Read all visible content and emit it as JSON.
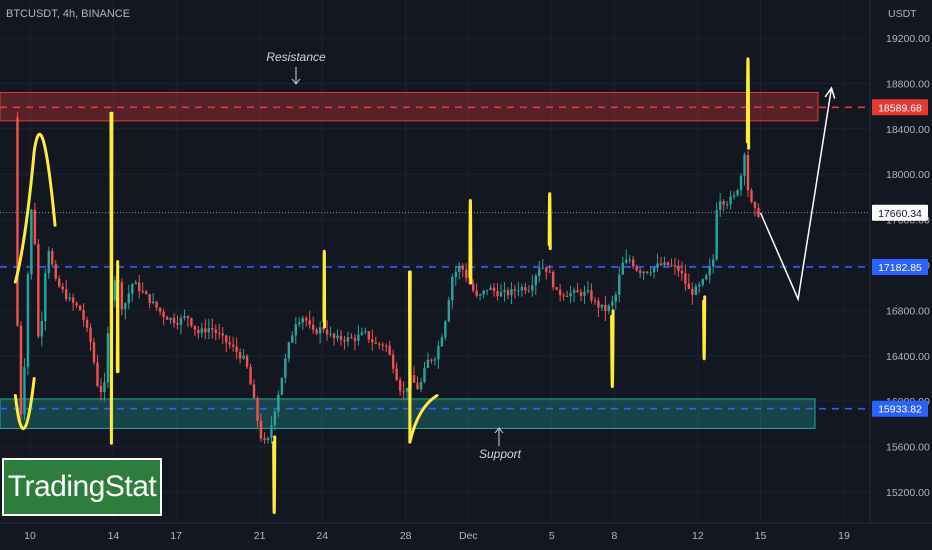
{
  "header": {
    "symbol": "BTCUSDT, 4h, BINANCE"
  },
  "brand": {
    "label": "TradingStat"
  },
  "chart_data": {
    "type": "candlestick",
    "ylabel": "USDT",
    "ylim": [
      14900,
      19450
    ],
    "y_ticks": [
      15200,
      15600,
      16000,
      16400,
      16800,
      17200,
      17600,
      18000,
      18400,
      18800,
      19200
    ],
    "y_tick_labels": [
      "15200.00",
      "15600.00",
      "16000.00",
      "16400.00",
      "16800.00",
      "17200.00",
      "17600.00",
      "18000.00",
      "18400.00",
      "18800.00",
      "19200.00"
    ],
    "x_ticks": [
      {
        "label": "10",
        "day": 10
      },
      {
        "label": "14",
        "day": 14
      },
      {
        "label": "17",
        "day": 17
      },
      {
        "label": "21",
        "day": 21
      },
      {
        "label": "24",
        "day": 24
      },
      {
        "label": "28",
        "day": 28
      },
      {
        "label": "Dec",
        "day": 31
      },
      {
        "label": "5",
        "day": 35
      },
      {
        "label": "8",
        "day": 38
      },
      {
        "label": "12",
        "day": 42
      },
      {
        "label": "15",
        "day": 45
      },
      {
        "label": "19",
        "day": 49
      }
    ],
    "price_levels": [
      {
        "label": "18589.68",
        "value": 18589.68,
        "color": "#e53935",
        "style": "dashed"
      },
      {
        "label": "17660.34",
        "value": 17660.34,
        "color": "#ffffff",
        "style": "dotted"
      },
      {
        "label": "17182.85",
        "value": 17182.85,
        "color": "#2962ff",
        "style": "dashed"
      },
      {
        "label": "15933.82",
        "value": 15933.82,
        "color": "#2962ff",
        "style": "dashed"
      }
    ],
    "zones": [
      {
        "name": "Resistance",
        "y_top": 18720,
        "y_bottom": 18470,
        "color": "#e53935"
      },
      {
        "name": "Support",
        "y_top": 16020,
        "y_bottom": 15760,
        "color": "#26a69a"
      }
    ],
    "annotations": [
      {
        "text": "Resistance",
        "near": "resistance-zone"
      },
      {
        "text": "Support",
        "near": "support-zone"
      }
    ],
    "path_points": [
      [
        9.4,
        18500
      ],
      [
        9.5,
        17600
      ],
      [
        9.6,
        16200
      ],
      [
        9.8,
        15750
      ],
      [
        10,
        16900
      ],
      [
        10.3,
        17900
      ],
      [
        10.6,
        16400
      ],
      [
        11,
        17400
      ],
      [
        11.4,
        17050
      ],
      [
        12,
        16900
      ],
      [
        12.6,
        16800
      ],
      [
        13.1,
        16500
      ],
      [
        13.4,
        16150
      ],
      [
        13.7,
        16050
      ],
      [
        14,
        16850
      ],
      [
        14.3,
        17150
      ],
      [
        14.6,
        16800
      ],
      [
        15.1,
        17050
      ],
      [
        15.6,
        16950
      ],
      [
        16.1,
        16850
      ],
      [
        16.6,
        16750
      ],
      [
        17.2,
        16700
      ],
      [
        17.7,
        16750
      ],
      [
        18.2,
        16600
      ],
      [
        18.8,
        16650
      ],
      [
        19.4,
        16550
      ],
      [
        20,
        16450
      ],
      [
        20.5,
        16350
      ],
      [
        20.9,
        16000
      ],
      [
        21.2,
        15700
      ],
      [
        21.5,
        15600
      ],
      [
        21.8,
        15850
      ],
      [
        22.1,
        16100
      ],
      [
        22.5,
        16450
      ],
      [
        22.9,
        16700
      ],
      [
        23.3,
        16750
      ],
      [
        23.7,
        16600
      ],
      [
        24.2,
        16650
      ],
      [
        24.7,
        16550
      ],
      [
        25.2,
        16550
      ],
      [
        25.7,
        16550
      ],
      [
        26.2,
        16600
      ],
      [
        26.7,
        16500
      ],
      [
        27.2,
        16500
      ],
      [
        27.6,
        16300
      ],
      [
        28,
        16050
      ],
      [
        28.4,
        16200
      ],
      [
        28.8,
        16100
      ],
      [
        29.2,
        16350
      ],
      [
        29.6,
        16400
      ],
      [
        30,
        16650
      ],
      [
        30.4,
        17100
      ],
      [
        30.8,
        17200
      ],
      [
        31.2,
        17050
      ],
      [
        31.6,
        16900
      ],
      [
        32.1,
        17000
      ],
      [
        32.6,
        16950
      ],
      [
        33.1,
        16950
      ],
      [
        33.6,
        17000
      ],
      [
        34.1,
        17000
      ],
      [
        34.6,
        17200
      ],
      [
        35,
        17150
      ],
      [
        35.4,
        16950
      ],
      [
        35.9,
        16950
      ],
      [
        36.4,
        16950
      ],
      [
        36.9,
        16950
      ],
      [
        37.3,
        16850
      ],
      [
        37.8,
        16800
      ],
      [
        38.2,
        16900
      ],
      [
        38.5,
        17200
      ],
      [
        38.9,
        17250
      ],
      [
        39.3,
        17150
      ],
      [
        39.8,
        17150
      ],
      [
        40.3,
        17200
      ],
      [
        40.8,
        17200
      ],
      [
        41.3,
        17150
      ],
      [
        41.8,
        16950
      ],
      [
        42.2,
        17000
      ],
      [
        42.6,
        17100
      ],
      [
        42.9,
        17250
      ],
      [
        43.1,
        17800
      ],
      [
        43.5,
        17750
      ],
      [
        43.9,
        17800
      ],
      [
        44.2,
        17950
      ],
      [
        44.4,
        18200
      ],
      [
        44.6,
        17800
      ],
      [
        44.8,
        17700
      ],
      [
        45,
        17650
      ]
    ],
    "projection": [
      {
        "day": 45,
        "price": 17660
      },
      {
        "day": 46.8,
        "price": 16900
      },
      {
        "day": 48.4,
        "price": 18760
      }
    ]
  }
}
